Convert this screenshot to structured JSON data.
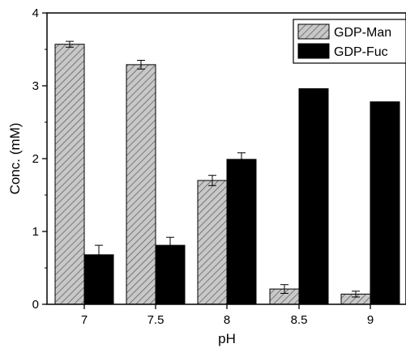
{
  "chart_data": {
    "type": "bar",
    "title": "",
    "xlabel": "pH",
    "ylabel": "Conc. (mM)",
    "categories": [
      "7",
      "7.5",
      "8",
      "8.5",
      "9"
    ],
    "ylim": [
      0,
      4
    ],
    "yticks": [
      "0",
      "1",
      "2",
      "3",
      "4"
    ],
    "grid": false,
    "legend_position": "top-right",
    "series": [
      {
        "name": "GDP-Man",
        "values": [
          3.57,
          3.29,
          1.7,
          0.21,
          0.14
        ],
        "errors": [
          0.04,
          0.06,
          0.07,
          0.06,
          0.04
        ],
        "fill": "hatched-gray",
        "color": "#c8c8c8"
      },
      {
        "name": "GDP-Fuc",
        "values": [
          0.68,
          0.81,
          1.99,
          2.96,
          2.78
        ],
        "errors": [
          0.13,
          0.11,
          0.09,
          0.0,
          0.0
        ],
        "fill": "solid",
        "color": "#000000"
      }
    ]
  }
}
